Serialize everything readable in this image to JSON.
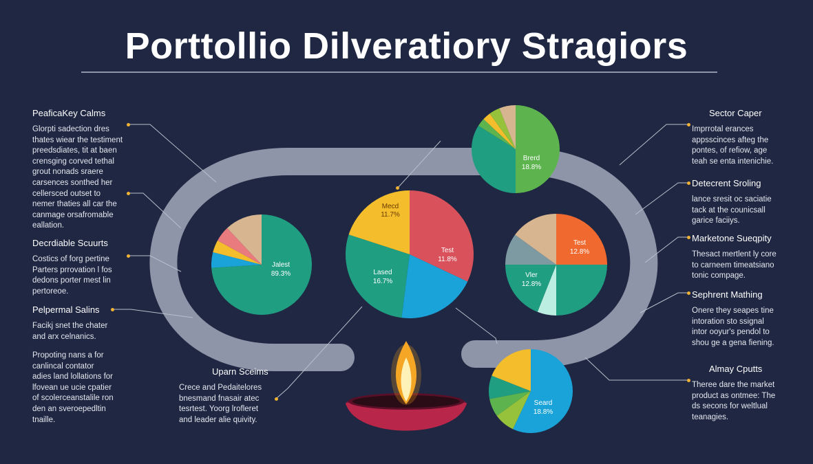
{
  "title": "Porttollio Dilveratiory Stragiors",
  "colors": {
    "background": "#1f2742",
    "track": "#8e95a8",
    "accent_dot": "#f2b233",
    "teal": "#1f9e82",
    "red": "#d8515b",
    "orange": "#f06a2f",
    "yellow": "#f3bd2b",
    "blue": "#1aa3d9",
    "green": "#5db44f",
    "tan": "#d6b590",
    "pink": "#e97a7e",
    "light_teal": "#bdeee2",
    "lime": "#95c23a",
    "slate": "#7d99a2"
  },
  "left_blocks": [
    {
      "heading": "PeaficaKey Calms",
      "lines": [
        "Glorpti sadection dres",
        "thates wiear the testiment",
        "preedsdiates, tit at baen",
        "crensging corved tethal",
        "grout nonads sraere",
        "carsences sonthed her",
        "cellersced outset to",
        "nemer thaties all car the",
        "canmage orsafromable",
        "eallation."
      ]
    },
    {
      "heading": "Decrdiable Scuurts",
      "lines": [
        "Costics of forg pertine",
        "Parters prrovation l fos",
        "dedons porter mest lin",
        "pertoreoe."
      ]
    },
    {
      "heading": "Pelpermal Salins",
      "lines": [
        "Facikj snet the chater",
        "and arx celnanics."
      ]
    },
    {
      "heading": "",
      "lines": [
        "Propoting nans a for",
        "canlincal contator",
        "adies land lollations for",
        "lfovean ue ucie cpatier",
        "of scolerceanstalile ron",
        "den an sveroepedltin",
        "tnaille."
      ]
    }
  ],
  "bottom_block": {
    "heading": "Uparn Sceims",
    "lines": [
      "Crece and Pedaitelores",
      "bnesmand fnasair atec",
      "tesrtest. Yoorg lrofleret",
      "and leader alie quivity."
    ]
  },
  "right_blocks": [
    {
      "heading": "Sector Caper",
      "lines": [
        "Imprrotal erances",
        "appsscinces afteg the",
        "pontes, of refiow, age",
        "teah se enta intenichie."
      ]
    },
    {
      "heading": "Detecrent Sroling",
      "lines": [
        "lance sresit oc saciatie",
        "tack at the counicsall",
        "garice faciiys."
      ]
    },
    {
      "heading": "Marketone Sueqpity",
      "lines": [
        "Thesact mertlent ly core",
        "to carneem timeatsiano",
        "tonic compage."
      ]
    },
    {
      "heading": "Sephrent Mathing",
      "lines": [
        "Onere they seapes tine",
        "intoration sto ssignal",
        "intor ooyur's pendol to",
        "shou ge a gena fiening."
      ]
    },
    {
      "heading": "Almay Cputts",
      "lines": [
        "Theree dare the market",
        "product as ontmee: The",
        "ds secons for weltlual",
        "teanagies."
      ]
    }
  ],
  "chart_data": [
    {
      "type": "pie",
      "label": "Jalest",
      "value_label": "89.3%",
      "slices": [
        {
          "value": 74,
          "color": "#1f9e82"
        },
        {
          "value": 5,
          "color": "#1aa3d9"
        },
        {
          "value": 4,
          "color": "#f3bd2b"
        },
        {
          "value": 5,
          "color": "#e97a7e"
        },
        {
          "value": 12,
          "color": "#d6b590"
        }
      ]
    },
    {
      "type": "pie",
      "label": "Mecd",
      "value_label": "11.7%",
      "slices": [
        {
          "value": 32,
          "color": "#d8515b"
        },
        {
          "value": 20,
          "color": "#1aa3d9"
        },
        {
          "value": 28,
          "color": "#1f9e82"
        },
        {
          "value": 20,
          "color": "#f3bd2b"
        }
      ],
      "labels": [
        {
          "name": "Mecd",
          "value": "11.7%"
        },
        {
          "name": "Test",
          "value": "11.8%"
        },
        {
          "name": "Lased",
          "value": "16.7%"
        }
      ]
    },
    {
      "type": "pie",
      "label": "Brerd",
      "value_label": "18.8%",
      "slices": [
        {
          "value": 50,
          "color": "#5db44f"
        },
        {
          "value": 34,
          "color": "#1f9e82"
        },
        {
          "value": 3,
          "color": "#5db44f"
        },
        {
          "value": 3,
          "color": "#f3bd2b"
        },
        {
          "value": 4,
          "color": "#95c23a"
        },
        {
          "value": 6,
          "color": "#d6b590"
        }
      ]
    },
    {
      "type": "pie",
      "label": "Test",
      "value_label": "12.8%",
      "slices": [
        {
          "value": 25,
          "color": "#f06a2f"
        },
        {
          "value": 25,
          "color": "#1f9e82"
        },
        {
          "value": 6,
          "color": "#bdeee2"
        },
        {
          "value": 19,
          "color": "#1f9e82"
        },
        {
          "value": 10,
          "color": "#7d99a2"
        },
        {
          "value": 15,
          "color": "#d6b590"
        }
      ],
      "labels": [
        {
          "name": "Test",
          "value": "12.8%"
        },
        {
          "name": "Vler",
          "value": "12.8%"
        }
      ]
    },
    {
      "type": "pie",
      "label": "Seard",
      "value_label": "18.8%",
      "slices": [
        {
          "value": 57,
          "color": "#1aa3d9"
        },
        {
          "value": 8,
          "color": "#95c23a"
        },
        {
          "value": 7,
          "color": "#5db44f"
        },
        {
          "value": 9,
          "color": "#1f9e82"
        },
        {
          "value": 19,
          "color": "#f3bd2b"
        }
      ]
    }
  ]
}
